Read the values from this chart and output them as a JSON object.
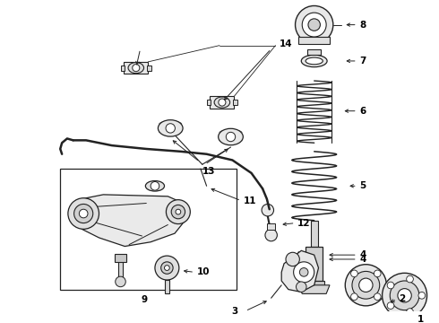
{
  "background_color": "#ffffff",
  "line_color": "#222222",
  "label_color": "#000000",
  "fig_width": 4.9,
  "fig_height": 3.6,
  "dpi": 100,
  "font_size": 7.5
}
